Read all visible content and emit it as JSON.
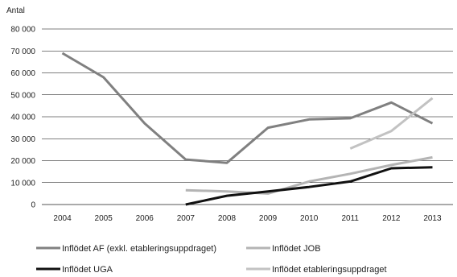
{
  "chart_data": {
    "type": "line",
    "ylabel": "Antal",
    "ylim": [
      0,
      80000
    ],
    "yticks": [
      0,
      10000,
      20000,
      30000,
      40000,
      50000,
      60000,
      70000,
      80000
    ],
    "ytick_labels": [
      "0",
      "10 000",
      "20 000",
      "30 000",
      "40 000",
      "50 000",
      "60 000",
      "70 000",
      "80 000"
    ],
    "x": [
      "2004",
      "2005",
      "2006",
      "2007",
      "2008",
      "2009",
      "2010",
      "2011",
      "2012",
      "2013"
    ],
    "grid": "horizontal",
    "legend_position": "bottom",
    "series": [
      {
        "name": "Inflödet AF (exkl. etableringsuppdraget)",
        "color": "#808080",
        "width": 3,
        "values": [
          69000,
          58000,
          37000,
          20500,
          19000,
          35000,
          38800,
          39300,
          46500,
          37000
        ]
      },
      {
        "name": "Inflödet JOB",
        "color": "#b4b4b4",
        "width": 3,
        "values": [
          null,
          null,
          null,
          6500,
          6000,
          5000,
          10500,
          14000,
          18000,
          21500
        ]
      },
      {
        "name": "Inflödet UGA",
        "color": "#111111",
        "width": 3,
        "values": [
          null,
          null,
          null,
          0,
          4000,
          6000,
          8000,
          10500,
          16500,
          17000
        ]
      },
      {
        "name": "Inflödet etableringsuppdraget",
        "color": "#c2c2c2",
        "width": 3,
        "values": [
          null,
          null,
          null,
          null,
          null,
          null,
          null,
          25500,
          33500,
          48500
        ]
      }
    ]
  }
}
